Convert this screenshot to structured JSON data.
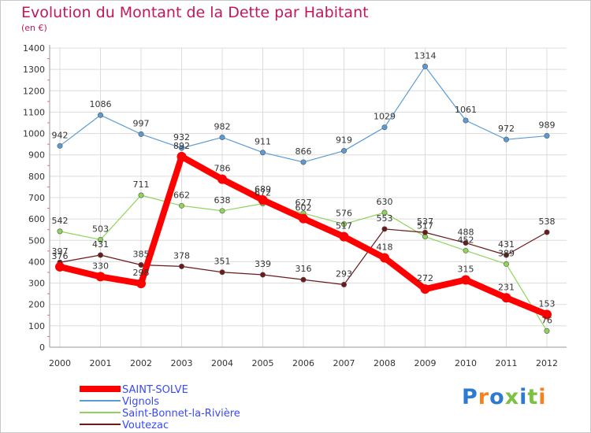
{
  "chart_data": {
    "type": "line",
    "title": "Evolution du Montant de la Dette par Habitant",
    "subtitle": "(en €)",
    "x": [
      2000,
      2001,
      2002,
      2003,
      2004,
      2005,
      2006,
      2007,
      2008,
      2009,
      2010,
      2011,
      2012
    ],
    "ylim": [
      0,
      1400
    ],
    "yticks": [
      0,
      100,
      200,
      300,
      400,
      500,
      600,
      700,
      800,
      900,
      1000,
      1100,
      1200,
      1300,
      1400
    ],
    "grid": true,
    "legend_position": "bottom-left",
    "series": [
      {
        "name": "SAINT-SOLVE",
        "color": "#ff0000",
        "values": [
          376,
          330,
          298,
          892,
          786,
          689,
          602,
          517,
          418,
          272,
          315,
          231,
          153
        ]
      },
      {
        "name": "Vignols",
        "color": "#5b9bd5",
        "values": [
          942,
          1086,
          997,
          932,
          982,
          911,
          866,
          919,
          1029,
          1314,
          1061,
          972,
          989
        ]
      },
      {
        "name": "Saint-Bonnet-la-Rivière",
        "color": "#8fd45a",
        "values": [
          542,
          503,
          711,
          662,
          638,
          672,
          627,
          576,
          630,
          517,
          452,
          389,
          76
        ]
      },
      {
        "name": "Voutezac",
        "color": "#6b1a1a",
        "values": [
          397,
          431,
          385,
          378,
          351,
          339,
          316,
          293,
          553,
          537,
          488,
          431,
          538
        ]
      }
    ]
  },
  "brand": {
    "text": "Proxiti",
    "colors": [
      "#2e7ad1",
      "#f58220",
      "#2e7ad1",
      "#7cc142",
      "#2e7ad1",
      "#7cc142",
      "#f58220"
    ]
  }
}
